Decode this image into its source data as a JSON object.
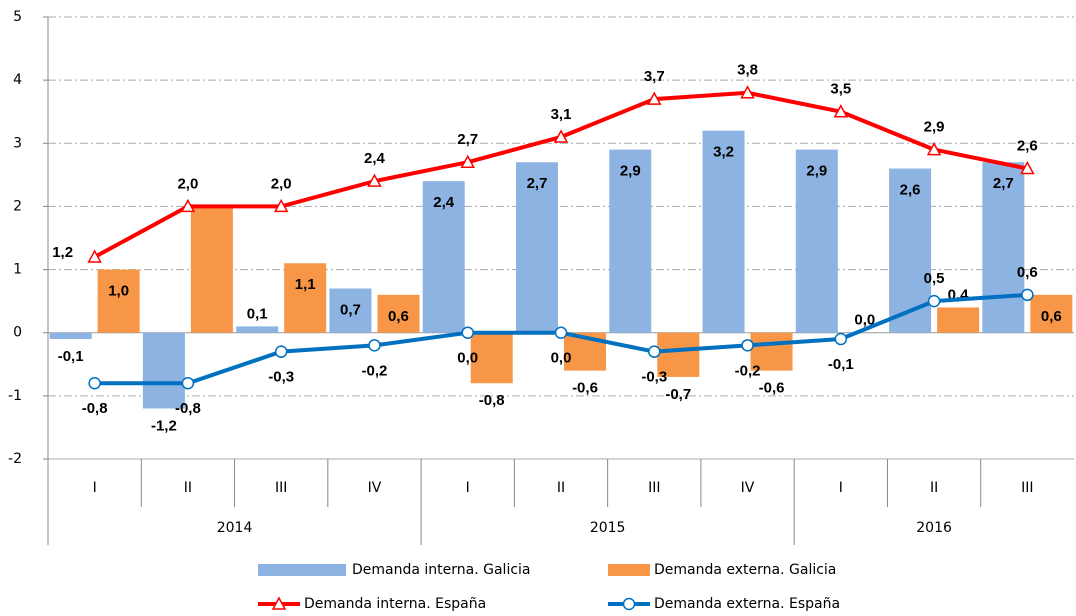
{
  "chart_data": {
    "type": "bar-line",
    "categories": [
      "I",
      "II",
      "III",
      "IV",
      "I",
      "II",
      "III",
      "IV",
      "I",
      "II",
      "III"
    ],
    "category_groups": [
      "2014",
      "2014",
      "2014",
      "2014",
      "2015",
      "2015",
      "2015",
      "2015",
      "2016",
      "2016",
      "2016"
    ],
    "ylim": [
      -2,
      5
    ],
    "yticks": [
      -2,
      -1,
      0,
      1,
      2,
      3,
      4,
      5
    ],
    "grid": true,
    "legend": "bottom",
    "series": [
      {
        "name": "Demanda interna. Galicia",
        "type": "bar",
        "color": "#8db3e2",
        "values": [
          -0.1,
          -1.2,
          0.1,
          0.7,
          2.4,
          2.7,
          2.9,
          3.2,
          2.9,
          2.6,
          2.7
        ],
        "value_labels": [
          "-0,1",
          "-1,2",
          "0,1",
          "0,7",
          "2,4",
          "2,7",
          "2,9",
          "3,2",
          "2,9",
          "2,6",
          "2,7"
        ]
      },
      {
        "name": "Demanda externa. Galicia",
        "type": "bar",
        "color": "#f79646",
        "values": [
          1.0,
          2.0,
          1.1,
          0.6,
          -0.8,
          -0.6,
          -0.7,
          -0.6,
          0.0,
          0.4,
          0.6
        ],
        "value_labels": [
          "1,0",
          null,
          "1,1",
          "0,6",
          "-0,8",
          "-0,6",
          "-0,7",
          "-0,6",
          "0,0",
          "0,4",
          "0,6"
        ]
      },
      {
        "name": "Demanda interna. España",
        "type": "line",
        "marker": "triangle",
        "color": "#ff0000",
        "values": [
          1.2,
          2.0,
          2.0,
          2.4,
          2.7,
          3.1,
          3.7,
          3.8,
          3.5,
          2.9,
          2.6
        ],
        "value_labels": [
          "1,2",
          "2,0",
          "2,0",
          "2,4",
          "2,7",
          "3,1",
          "3,7",
          "3,8",
          "3,5",
          "2,9",
          "2,6"
        ]
      },
      {
        "name": "Demanda externa. España",
        "type": "line",
        "marker": "circle",
        "color": "#0070c0",
        "values": [
          -0.8,
          -0.8,
          -0.3,
          -0.2,
          0.0,
          0.0,
          -0.3,
          -0.2,
          -0.1,
          0.5,
          0.6
        ],
        "value_labels": [
          "-0,8",
          "-0,8",
          "-0,3",
          "-0,2",
          "0,0",
          "0,0",
          "-0,3",
          "-0,2",
          "-0,1",
          "0,5",
          "0,6"
        ]
      }
    ]
  }
}
